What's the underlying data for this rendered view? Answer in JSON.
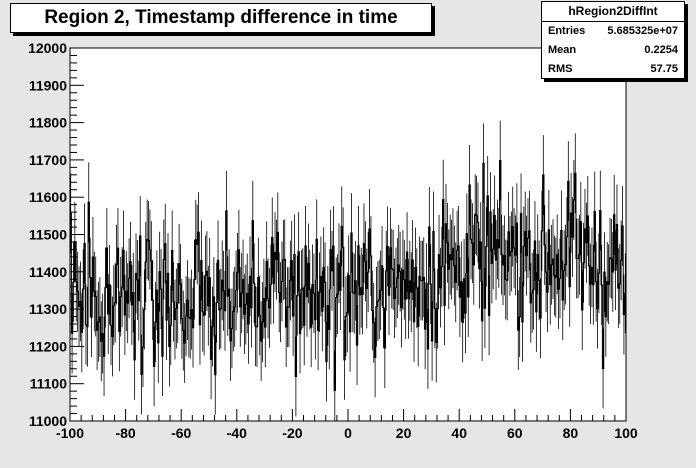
{
  "chart_data": {
    "type": "histogram",
    "title": "Region 2, Timestamp difference in time",
    "xlabel": "",
    "ylabel": "",
    "xlim": [
      -100,
      100
    ],
    "ylim": [
      11000,
      12000
    ],
    "x_ticks": [
      "-100",
      "-80",
      "-60",
      "-40",
      "-20",
      "0",
      "20",
      "40",
      "60",
      "80",
      "100"
    ],
    "y_ticks": [
      "11000",
      "11100",
      "11200",
      "11300",
      "11400",
      "11500",
      "11600",
      "11700",
      "11800",
      "11900",
      "12000"
    ],
    "bin_width": 0.5,
    "bin_start": -100,
    "segments": [
      {
        "x_start": -100,
        "x_end": -80,
        "y_start": 11360,
        "y_end": 11340
      },
      {
        "x_start": -80,
        "x_end": -60,
        "y_start": 11340,
        "y_end": 11330
      },
      {
        "x_start": -60,
        "x_end": -40,
        "y_start": 11330,
        "y_end": 11330
      },
      {
        "x_start": -40,
        "x_end": -20,
        "y_start": 11330,
        "y_end": 11350
      },
      {
        "x_start": -20,
        "x_end": 0,
        "y_start": 11350,
        "y_end": 11350
      },
      {
        "x_start": 0,
        "x_end": 20,
        "y_start": 11350,
        "y_end": 11370
      },
      {
        "x_start": 20,
        "x_end": 40,
        "y_start": 11370,
        "y_end": 11430
      },
      {
        "x_start": 40,
        "x_end": 60,
        "y_start": 11430,
        "y_end": 11440
      },
      {
        "x_start": 60,
        "x_end": 80,
        "y_start": 11440,
        "y_end": 11450
      },
      {
        "x_start": 80,
        "x_end": 100,
        "y_start": 11450,
        "y_end": 11400
      }
    ],
    "noise_sigma": 95,
    "error_bar": 107
  },
  "stats": {
    "name": "hRegion2DiffInt",
    "rows": [
      {
        "label": "Entries",
        "value": "5.685325e+07"
      },
      {
        "label": "Mean",
        "value": "0.2254"
      },
      {
        "label": "RMS",
        "value": "57.75"
      }
    ]
  },
  "colors": {
    "pad_background": "#e6e6e6",
    "frame_background": "#ffffff",
    "line": "#000000"
  }
}
